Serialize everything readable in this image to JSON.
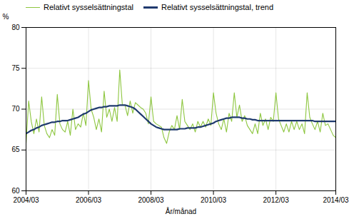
{
  "chart_data": {
    "type": "line",
    "xlabel": "År/månad",
    "ylabel": "%",
    "categories": [
      "2004/03",
      null,
      null,
      null,
      null,
      null,
      null,
      null,
      null,
      null,
      null,
      null,
      null,
      null,
      null,
      null,
      null,
      null,
      null,
      null,
      null,
      null,
      null,
      null,
      "2006/03",
      null,
      null,
      null,
      null,
      null,
      null,
      null,
      null,
      null,
      null,
      null,
      null,
      null,
      null,
      null,
      null,
      null,
      null,
      null,
      null,
      null,
      null,
      null,
      "2008/03",
      null,
      null,
      null,
      null,
      null,
      null,
      null,
      null,
      null,
      null,
      null,
      null,
      null,
      null,
      null,
      null,
      null,
      null,
      null,
      null,
      null,
      null,
      null,
      "2010/03",
      null,
      null,
      null,
      null,
      null,
      null,
      null,
      null,
      null,
      null,
      null,
      null,
      null,
      null,
      null,
      null,
      null,
      null,
      null,
      null,
      null,
      null,
      null,
      "2012/03",
      null,
      null,
      null,
      null,
      null,
      null,
      null,
      null,
      null,
      null,
      null,
      null,
      null,
      null,
      null,
      null,
      null,
      null,
      null,
      null,
      null,
      null,
      "2014/03"
    ],
    "series": [
      {
        "name": "Relativt sysselsättningstal",
        "color": "#8dc63f",
        "values": [
          65.8,
          71.0,
          68.5,
          67.0,
          68.8,
          67.2,
          71.5,
          68.0,
          67.0,
          66.5,
          67.5,
          66.8,
          71.8,
          68.2,
          67.5,
          67.2,
          68.5,
          66.8,
          70.0,
          67.5,
          68.2,
          67.8,
          69.5,
          68.0,
          73.5,
          70.0,
          69.0,
          67.5,
          68.8,
          67.2,
          72.2,
          69.0,
          70.0,
          68.5,
          70.2,
          68.5,
          74.8,
          70.5,
          70.5,
          69.2,
          71.0,
          69.5,
          70.8,
          70.5,
          70.2,
          70.0,
          69.5,
          68.2,
          71.5,
          68.5,
          68.2,
          68.0,
          67.8,
          66.5,
          65.8,
          67.2,
          68.0,
          67.5,
          69.2,
          67.5,
          71.2,
          68.5,
          68.0,
          67.5,
          68.2,
          67.2,
          68.5,
          67.8,
          68.5,
          67.8,
          68.8,
          68.0,
          72.0,
          69.5,
          68.2,
          67.5,
          68.8,
          67.2,
          69.5,
          68.5,
          72.0,
          69.0,
          70.5,
          68.5,
          69.2,
          68.0,
          67.5,
          67.0,
          68.2,
          67.0,
          69.5,
          68.0,
          68.8,
          67.5,
          69.0,
          68.5,
          72.0,
          68.8,
          68.0,
          67.2,
          68.2,
          67.2,
          68.5,
          67.5,
          68.5,
          67.5,
          68.2,
          67.0,
          72.0,
          69.0,
          68.2,
          67.5,
          68.5,
          67.2,
          69.5,
          68.0,
          68.2,
          67.5,
          66.8,
          66.5
        ]
      },
      {
        "name": "Relativt sysselsättningstal, trend",
        "color": "#1f3a6e",
        "values": [
          67.0,
          67.2,
          67.4,
          67.5,
          67.7,
          67.8,
          68.0,
          68.1,
          68.2,
          68.3,
          68.4,
          68.4,
          68.5,
          68.5,
          68.6,
          68.6,
          68.6,
          68.7,
          68.8,
          68.9,
          69.0,
          69.2,
          69.4,
          69.5,
          69.7,
          69.9,
          70.0,
          70.1,
          70.2,
          70.2,
          70.3,
          70.3,
          70.4,
          70.4,
          70.4,
          70.4,
          70.5,
          70.5,
          70.5,
          70.4,
          70.3,
          70.2,
          70.0,
          69.7,
          69.4,
          69.1,
          68.8,
          68.5,
          68.2,
          68.0,
          67.8,
          67.7,
          67.6,
          67.5,
          67.5,
          67.5,
          67.5,
          67.5,
          67.5,
          67.6,
          67.6,
          67.6,
          67.7,
          67.7,
          67.7,
          67.7,
          67.8,
          67.8,
          67.9,
          68.0,
          68.1,
          68.2,
          68.3,
          68.5,
          68.6,
          68.7,
          68.8,
          68.9,
          68.9,
          69.0,
          69.0,
          69.0,
          69.0,
          68.9,
          68.9,
          68.8,
          68.8,
          68.7,
          68.7,
          68.6,
          68.6,
          68.6,
          68.6,
          68.6,
          68.6,
          68.6,
          68.6,
          68.6,
          68.6,
          68.6,
          68.6,
          68.6,
          68.6,
          68.6,
          68.6,
          68.6,
          68.6,
          68.6,
          68.6,
          68.6,
          68.6,
          68.5,
          68.5,
          68.5,
          68.5,
          68.5,
          68.5,
          68.5,
          68.5,
          68.5
        ]
      }
    ],
    "ylim": [
      60,
      80
    ],
    "yticks": [
      60,
      65,
      70,
      75,
      80
    ],
    "grid": true,
    "legend": "upper left"
  }
}
